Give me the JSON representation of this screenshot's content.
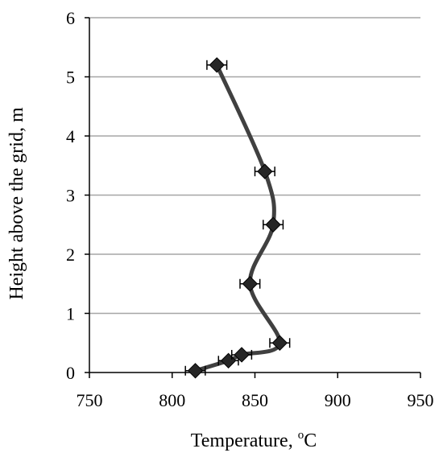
{
  "chart_data": {
    "type": "scatter",
    "title": "",
    "xlabel": {
      "prefix": "Temperature, ",
      "superscript": "o",
      "suffix": "C"
    },
    "ylabel": "Height above the grid, m",
    "xlim": [
      750,
      950
    ],
    "ylim": [
      0,
      6
    ],
    "xticks": [
      750,
      800,
      850,
      900,
      950
    ],
    "yticks": [
      0,
      1,
      2,
      3,
      4,
      5,
      6
    ],
    "grid": {
      "horizontal": true,
      "vertical": false
    },
    "line_smoothed": true,
    "series": [
      {
        "points": [
          {
            "x": 814,
            "y": 0.03,
            "xerr": 6
          },
          {
            "x": 834,
            "y": 0.2,
            "xerr": 6
          },
          {
            "x": 842,
            "y": 0.3,
            "xerr": 6
          },
          {
            "x": 865,
            "y": 0.5,
            "xerr": 6
          },
          {
            "x": 847,
            "y": 1.5,
            "xerr": 6
          },
          {
            "x": 861,
            "y": 2.5,
            "xerr": 6
          },
          {
            "x": 856,
            "y": 3.4,
            "xerr": 6
          },
          {
            "x": 827,
            "y": 5.2,
            "xerr": 6
          }
        ]
      }
    ],
    "colors": {
      "line": "#404040",
      "marker": "#262626",
      "gridline": "#a6a6a6",
      "axis": "#000000"
    }
  }
}
